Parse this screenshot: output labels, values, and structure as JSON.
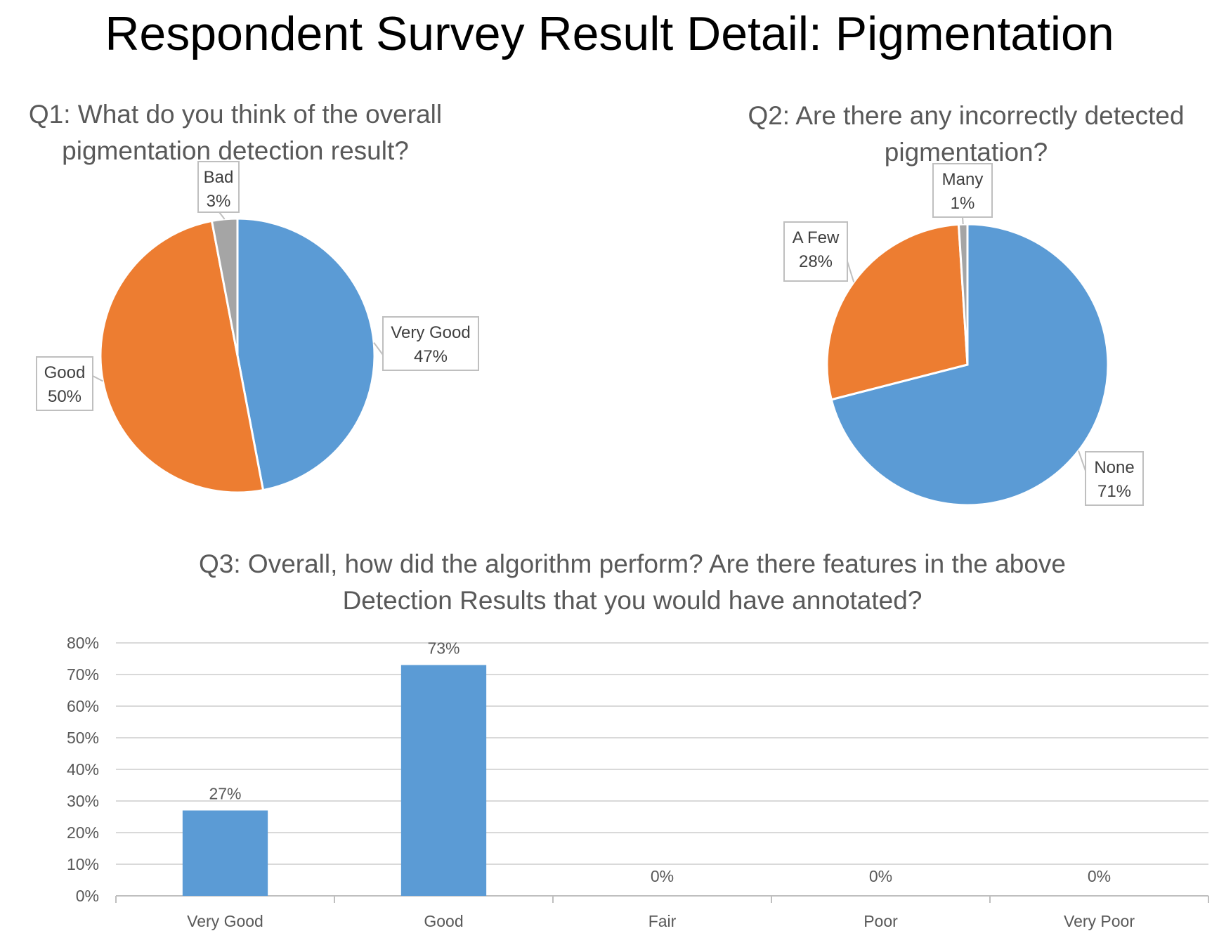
{
  "page_title": "Respondent Survey Result Detail:  Pigmentation",
  "colors": {
    "blue": "#5b9bd5",
    "orange": "#ed7d31",
    "gray": "#a5a5a5",
    "gridline": "#d9d9d9",
    "axis": "#bfbfbf",
    "title_text": "#595959",
    "label_text": "#404040"
  },
  "chart_data": [
    {
      "type": "pie",
      "title_lines": [
        "Q1: What do you think of the overall",
        "pigmentation detection result?"
      ],
      "slices": [
        {
          "name": "Very Good",
          "value": 47,
          "label": "47%",
          "color": "#5b9bd5"
        },
        {
          "name": "Good",
          "value": 50,
          "label": "50%",
          "color": "#ed7d31"
        },
        {
          "name": "Bad",
          "value": 3,
          "label": "3%",
          "color": "#a5a5a5"
        }
      ],
      "start_angle_deg": 0,
      "direction": "clockwise"
    },
    {
      "type": "pie",
      "title_lines": [
        "Q2: Are there any incorrectly detected",
        "pigmentation?"
      ],
      "slices": [
        {
          "name": "None",
          "value": 71,
          "label": "71%",
          "color": "#5b9bd5"
        },
        {
          "name": "A Few",
          "value": 28,
          "label": "28%",
          "color": "#ed7d31"
        },
        {
          "name": "Many",
          "value": 1,
          "label": "1%",
          "color": "#a5a5a5"
        }
      ],
      "start_angle_deg": 0,
      "direction": "clockwise"
    },
    {
      "type": "bar",
      "title_lines": [
        "Q3: Overall, how did the algorithm perform?  Are there features in the above",
        "Detection Results that you would have annotated?"
      ],
      "categories": [
        "Very Good",
        "Good",
        "Fair",
        "Poor",
        "Very Poor"
      ],
      "values": [
        27,
        73,
        0,
        0,
        0
      ],
      "value_labels": [
        "27%",
        "73%",
        "0%",
        "0%",
        "0%"
      ],
      "ylim": [
        0,
        80
      ],
      "yticks": [
        0,
        10,
        20,
        30,
        40,
        50,
        60,
        70,
        80
      ],
      "ytick_labels": [
        "0%",
        "10%",
        "20%",
        "30%",
        "40%",
        "50%",
        "60%",
        "70%",
        "80%"
      ],
      "grid": true,
      "bar_color": "#5b9bd5"
    }
  ]
}
